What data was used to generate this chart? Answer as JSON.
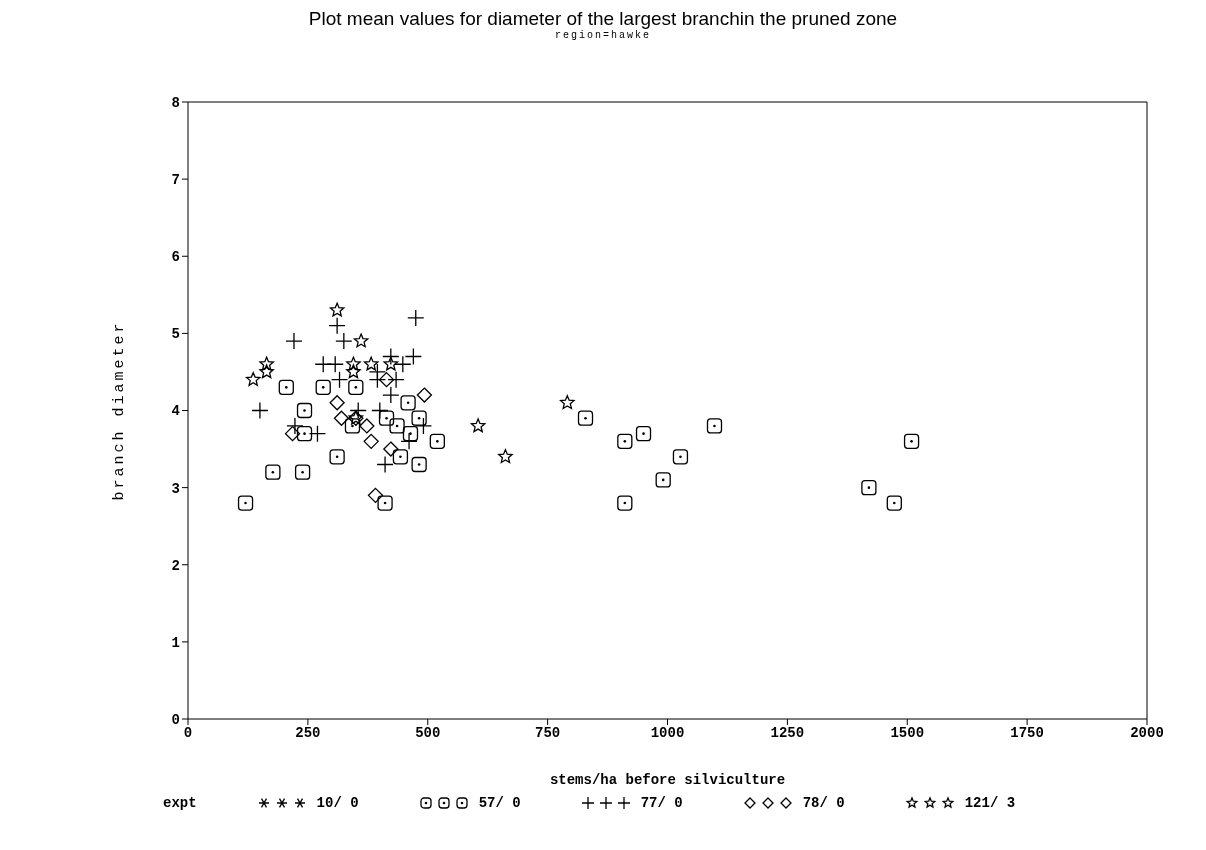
{
  "chart_data": {
    "type": "scatter",
    "title": "Plot mean values for diameter of the largest branchin the pruned zone",
    "subtitle": "region=hawke",
    "xlabel": "stems/ha before silviculture",
    "ylabel": "branch diameter",
    "legend_title": "expt",
    "legend": "bottom",
    "grid": false,
    "xlim": [
      0,
      2000
    ],
    "xticks": [
      0,
      250,
      500,
      750,
      1000,
      1250,
      1500,
      1750,
      2000
    ],
    "ylim": [
      0,
      8
    ],
    "yticks": [
      0,
      1,
      2,
      3,
      4,
      5,
      6,
      7,
      8
    ],
    "series": [
      {
        "name": "10/ 0",
        "color": "#000000",
        "marker": "asterisk"
      },
      {
        "name": "57/ 0",
        "color": "#000000",
        "marker": "square",
        "x": [
          205,
          282,
          350,
          243,
          243,
          177,
          239,
          120,
          311,
          414,
          343,
          459,
          482,
          436,
          464,
          520,
          443,
          482,
          411,
          829,
          911,
          950,
          1098,
          1027,
          991,
          911,
          1509,
          1420,
          1473
        ],
        "values": [
          4.3,
          4.3,
          4.3,
          4.0,
          3.7,
          3.2,
          3.2,
          2.8,
          3.4,
          3.9,
          3.8,
          4.1,
          3.9,
          3.8,
          3.7,
          3.6,
          3.4,
          3.3,
          2.8,
          3.9,
          3.6,
          3.7,
          3.8,
          3.4,
          3.1,
          2.8,
          3.6,
          3.0,
          2.8
        ]
      },
      {
        "name": "77/ 0",
        "color": "#000000",
        "marker": "plus",
        "x": [
          475,
          311,
          221,
          325,
          470,
          282,
          307,
          423,
          448,
          395,
          434,
          316,
          395,
          150,
          355,
          400,
          223,
          270,
          461,
          411,
          423,
          491
        ],
        "values": [
          5.2,
          5.1,
          4.9,
          4.9,
          4.7,
          4.6,
          4.6,
          4.7,
          4.6,
          4.5,
          4.4,
          4.4,
          4.4,
          4.0,
          4.0,
          4.0,
          3.8,
          3.7,
          3.6,
          3.3,
          4.2,
          3.8
        ]
      },
      {
        "name": "78/ 0",
        "color": "#000000",
        "marker": "diamond",
        "x": [
          493,
          311,
          320,
          218,
          373,
          382,
          414,
          391,
          423,
          350
        ],
        "values": [
          4.2,
          4.1,
          3.9,
          3.7,
          3.8,
          3.6,
          4.4,
          2.9,
          3.5,
          3.9
        ]
      },
      {
        "name": "121/ 3",
        "color": "#000000",
        "marker": "star",
        "x": [
          311,
          361,
          164,
          164,
          136,
          345,
          382,
          345,
          423,
          605,
          791,
          662,
          350
        ],
        "values": [
          5.3,
          4.9,
          4.6,
          4.5,
          4.4,
          4.6,
          4.6,
          4.5,
          4.6,
          3.8,
          4.1,
          3.4,
          3.9
        ]
      }
    ]
  }
}
